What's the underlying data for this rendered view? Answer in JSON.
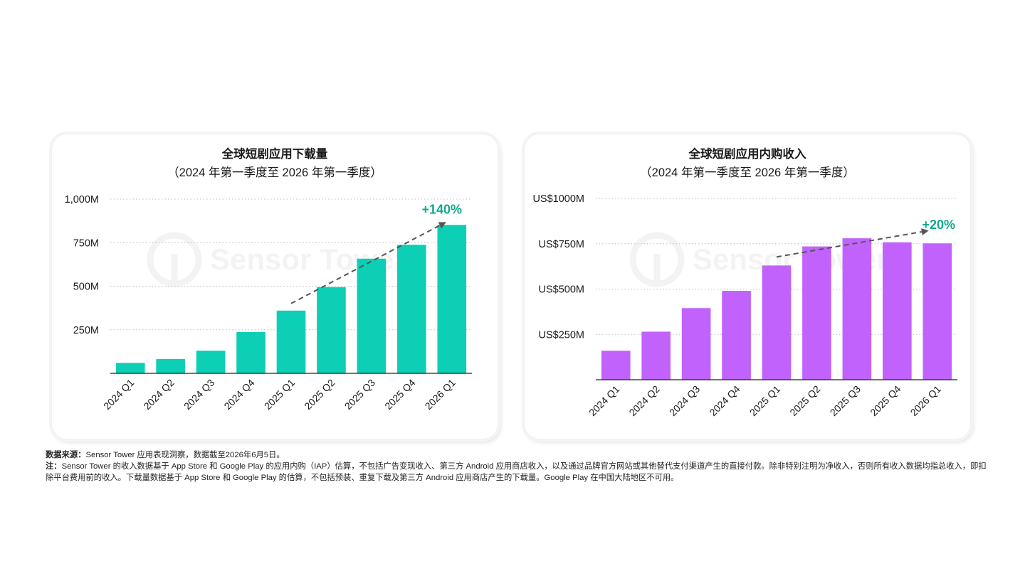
{
  "chart_data": [
    {
      "type": "bar",
      "title": "全球短剧应用下载量",
      "subtitle": "（2024 年第一季度至 2026 年第一季度）",
      "categories": [
        "2024 Q1",
        "2024 Q2",
        "2024 Q3",
        "2024 Q4",
        "2025 Q1",
        "2025 Q2",
        "2025 Q3",
        "2025 Q4",
        "2026 Q1"
      ],
      "values": [
        60,
        82,
        130,
        237,
        360,
        495,
        658,
        738,
        852
      ],
      "yticks": [
        250,
        500,
        750,
        1000
      ],
      "ytick_labels": [
        "250M",
        "500M",
        "750M",
        "1,000M"
      ],
      "ylim": [
        0,
        1000
      ],
      "grid": true,
      "color": "#0CCFB5",
      "annotation": {
        "text": "+140%",
        "color": "#10A88E",
        "from_category": "2025 Q1",
        "to_category": "2026 Q1",
        "arrow": "dashed"
      }
    },
    {
      "type": "bar",
      "title": "全球短剧应用内购收入",
      "subtitle": "（2024 年第一季度至 2026 年第一季度）",
      "categories": [
        "2024 Q1",
        "2024 Q2",
        "2024 Q3",
        "2024 Q4",
        "2025 Q1",
        "2025 Q2",
        "2025 Q3",
        "2025 Q4",
        "2026 Q1"
      ],
      "values": [
        160,
        265,
        395,
        490,
        630,
        735,
        780,
        758,
        752
      ],
      "yticks": [
        250,
        500,
        750,
        1000
      ],
      "ytick_labels": [
        "US$250M",
        "US$500M",
        "US$750M",
        "US$1000M"
      ],
      "ylim": [
        0,
        1000
      ],
      "grid": true,
      "color": "#C062FB",
      "annotation": {
        "text": "+20%",
        "color": "#10A88E",
        "from_category": "2025 Q1",
        "to_category": "2026 Q1",
        "arrow": "dashed"
      }
    }
  ],
  "watermark": "Sensor Tower",
  "footnotes": {
    "source_label": "数据来源：",
    "source_text": "Sensor Tower 应用表现洞察，数据截至2026年6月5日。",
    "note_label": "注：",
    "note_text": "Sensor Tower 的收入数据基于 App Store 和 Google Play 的应用内购（IAP）估算，不包括广告变现收入、第三方 Android 应用商店收入，以及通过品牌官方网站或其他替代支付渠道产生的直接付款。除非特别注明为净收入，否则所有收入数据均指总收入，即扣除平台费用前的收入。下载量数据基于 App Store 和 Google Play 的估算，不包括预装、重复下载及第三方 Android 应用商店产生的下载量。Google Play 在中国大陆地区不可用。"
  }
}
